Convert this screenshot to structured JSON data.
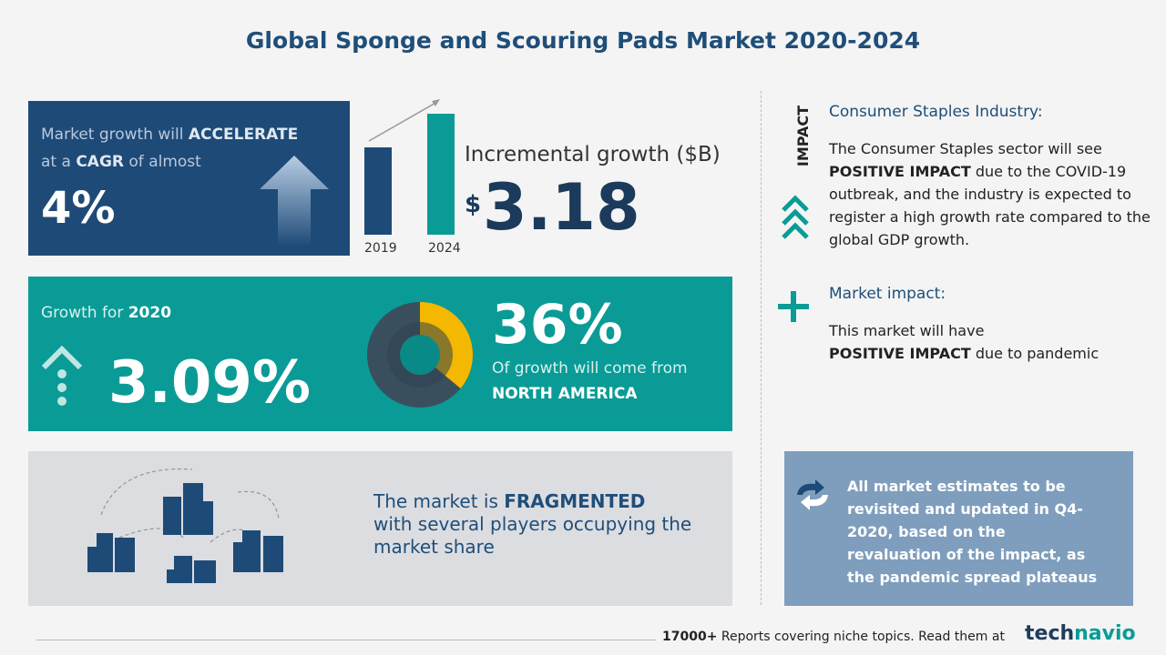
{
  "header": {
    "title": "Global Sponge and Scouring Pads Market 2020-2024"
  },
  "cagr_panel": {
    "line1": "Market growth will",
    "emphasis1": "ACCELERATE",
    "line2a": "at a",
    "emphasis2": "CAGR",
    "line2b": "of almost",
    "value": "4%"
  },
  "incremental": {
    "years": [
      "2019",
      "2024"
    ],
    "label": "Incremental growth ($B)",
    "currency": "$",
    "value": "3.18"
  },
  "growth_panel": {
    "label": "Growth for",
    "year": "2020",
    "value": "3.09%",
    "share": {
      "value": 36,
      "label": "36%"
    },
    "share_text": "Of growth will come from",
    "region": "NORTH AMERICA"
  },
  "vendor_panel": {
    "text1": "The market is",
    "emphasis": "FRAGMENTED",
    "text2": "with several players occupying the market share"
  },
  "impact": {
    "tag": "IMPACT",
    "heading": "Consumer Staples Industry:",
    "text1": "The Consumer Staples sector will see",
    "emphasis": "POSITIVE IMPACT",
    "text2": "due to the COVID-19 outbreak, and the industry is expected to register a high growth rate compared to the global GDP growth."
  },
  "market_impact": {
    "heading": "Market impact:",
    "text1": "This market will have",
    "emphasis": "POSITIVE IMPACT",
    "text2": "due to pandemic"
  },
  "note": {
    "text": "All market estimates to be revisited and updated in Q4-2020, based on the revaluation of the impact, as the pandemic spread plateaus"
  },
  "footer": {
    "count": "17000+",
    "text": "Reports covering niche topics. Read them at",
    "brand1": "tech",
    "brand2": "navio"
  }
}
